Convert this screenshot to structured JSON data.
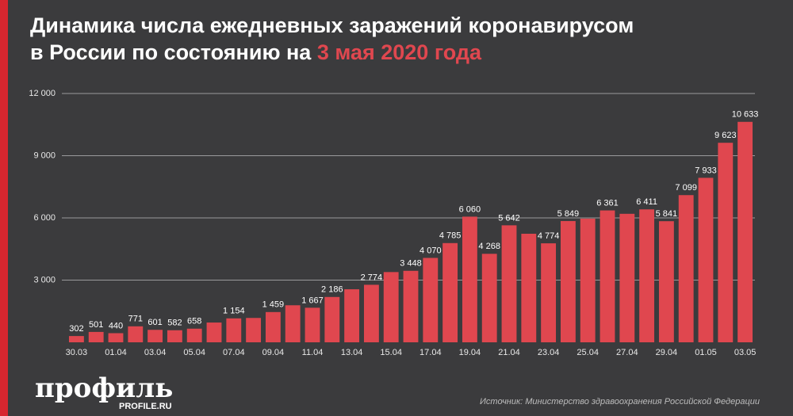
{
  "chart_data": {
    "type": "bar",
    "title": "Динамика числа ежедневных заражений коронавирусом",
    "title_line2": "в России по состоянию на",
    "title_highlight": "3 мая 2020 года",
    "categories": [
      "30.03",
      null,
      "01.04",
      null,
      "03.04",
      null,
      "05.04",
      null,
      "07.04",
      null,
      "09.04",
      null,
      "11.04",
      null,
      "13.04",
      null,
      "15.04",
      null,
      "17.04",
      null,
      "19.04",
      null,
      "21.04",
      null,
      "23.04",
      null,
      "25.04",
      null,
      "27.04",
      null,
      "29.04",
      null,
      "01.05",
      null,
      "03.05"
    ],
    "values": [
      302,
      501,
      440,
      771,
      601,
      582,
      658,
      954,
      1154,
      1175,
      1459,
      1786,
      1667,
      2186,
      2558,
      2774,
      3388,
      3448,
      4070,
      4785,
      6060,
      4268,
      5642,
      5236,
      4774,
      5849,
      5966,
      6361,
      6198,
      6411,
      5841,
      7099,
      7933,
      9623,
      10633
    ],
    "value_labels": [
      "302",
      "501",
      "440",
      "771",
      "601",
      "582",
      "658",
      null,
      "1 154",
      null,
      "1 459",
      null,
      "1 667",
      "2 186",
      null,
      "2 774",
      null,
      "3 448",
      "4 070",
      "4 785",
      "6 060",
      "4 268",
      "5 642",
      null,
      "4 774",
      "5 849",
      null,
      "6 361",
      null,
      "6 411",
      "5 841",
      "7 099",
      "7 933",
      "9 623",
      "10 633"
    ],
    "color": "#e0474f",
    "ylim": [
      0,
      12000
    ],
    "yticks": [
      {
        "value": 3000,
        "label": "3 000"
      },
      {
        "value": 6000,
        "label": "6 000"
      },
      {
        "value": 9000,
        "label": "9 000"
      },
      {
        "value": 12000,
        "label": "12 000"
      }
    ],
    "grid": true,
    "source": "Источник: Министерство здравоохранения Российской Федерации"
  },
  "logo": {
    "name": "профиль",
    "site": "PROFILE.RU"
  }
}
